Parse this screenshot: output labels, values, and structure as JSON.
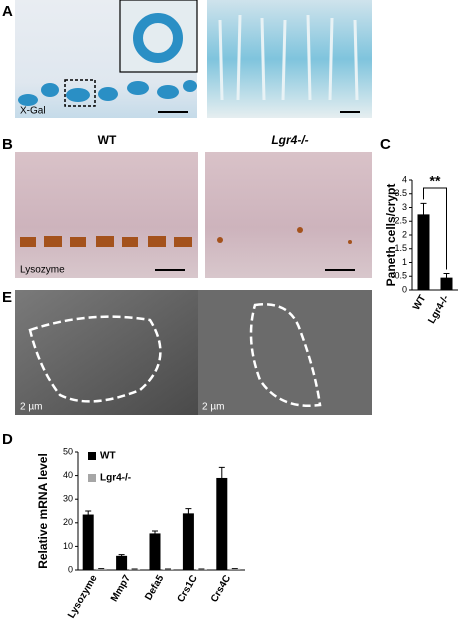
{
  "panels": {
    "a": {
      "label": "A",
      "stain": "X-Gal"
    },
    "b": {
      "label": "B",
      "left_title": "WT",
      "right_title": "Lgr4-/-",
      "stain": "Lysozyme"
    },
    "e": {
      "label": "E",
      "left_scale": "2 µm",
      "right_scale": "2 µm"
    }
  },
  "chart_data": [
    {
      "type": "bar",
      "panel_label": "C",
      "ylabel": "Paneth cells/crypt",
      "annotation": "**",
      "categories": [
        "WT",
        "Lgr4-/-"
      ],
      "values": [
        2.75,
        0.45
      ],
      "errors": [
        0.4,
        0.15
      ],
      "color": "#000000",
      "ylim": [
        0,
        4
      ],
      "yticks": [
        0,
        0.5,
        1,
        1.5,
        2,
        2.5,
        3,
        3.5,
        4
      ]
    },
    {
      "type": "grouped_bar",
      "panel_label": "D",
      "ylabel": "Relative mRNA level",
      "categories": [
        "Lysozyme",
        "Mmp7",
        "Defa5",
        "Crs1C",
        "Crs4C"
      ],
      "series": [
        {
          "name": "WT",
          "color": "#000000",
          "values": [
            23.5,
            6,
            15.5,
            24,
            39
          ],
          "errors": [
            1.5,
            0.5,
            1,
            2,
            4.5
          ]
        },
        {
          "name": "Lgr4-/-",
          "color": "#a6a6a6",
          "values": [
            0.5,
            0.3,
            0.3,
            0.3,
            0.5
          ],
          "errors": [
            0.1,
            0.1,
            0.1,
            0.1,
            0.1
          ]
        }
      ],
      "ylim": [
        0,
        50
      ],
      "yticks": [
        0,
        10,
        20,
        30,
        40,
        50
      ]
    }
  ]
}
